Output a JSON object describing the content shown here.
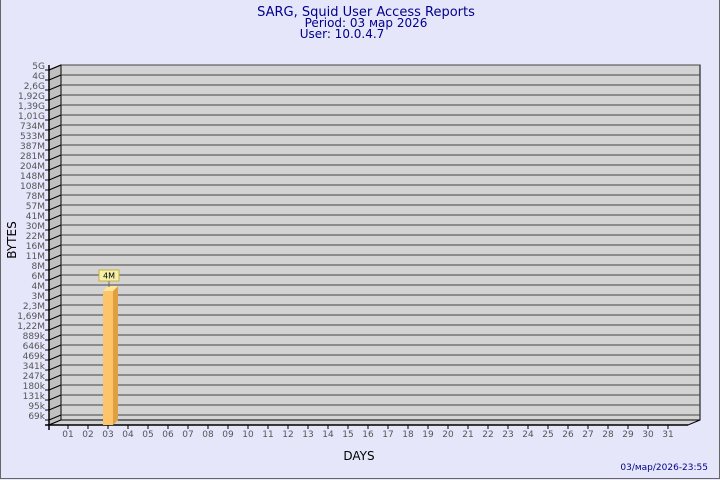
{
  "chart_data": {
    "type": "bar",
    "title": "SARG, Squid User Access Reports",
    "subtitle": [
      "Period: 03 мар 2026",
      "User: 10.0.4.7"
    ],
    "xlabel": "DAYS",
    "ylabel": "BYTES",
    "y_scale": "log",
    "y_tick_labels": [
      "5G",
      "4G",
      "2,6G",
      "1,92G",
      "1,39G",
      "1,01G",
      "734M",
      "533M",
      "387M",
      "281M",
      "204M",
      "148M",
      "108M",
      "78M",
      "57M",
      "41M",
      "30M",
      "22M",
      "16M",
      "11M",
      "8M",
      "6M",
      "4M",
      "3M",
      "2,3M",
      "1,69M",
      "1,22M",
      "889k",
      "646k",
      "469k",
      "341k",
      "247k",
      "180k",
      "131k",
      "95k",
      "69k"
    ],
    "categories": [
      "01",
      "02",
      "03",
      "04",
      "05",
      "06",
      "07",
      "08",
      "09",
      "10",
      "11",
      "12",
      "13",
      "14",
      "15",
      "16",
      "17",
      "18",
      "19",
      "20",
      "21",
      "22",
      "23",
      "24",
      "25",
      "26",
      "27",
      "28",
      "29",
      "30",
      "31"
    ],
    "bars": [
      {
        "category": "03",
        "value_label": "4M"
      }
    ],
    "grid": true,
    "colors": {
      "bar": "#fec46a",
      "bar_side": "#e0a040",
      "bar_top": "#ffe69a",
      "plot_bg": "#d3d3d3",
      "text": "#00008b"
    }
  },
  "footer": {
    "timestamp": "03/мар/2026-23:55"
  }
}
